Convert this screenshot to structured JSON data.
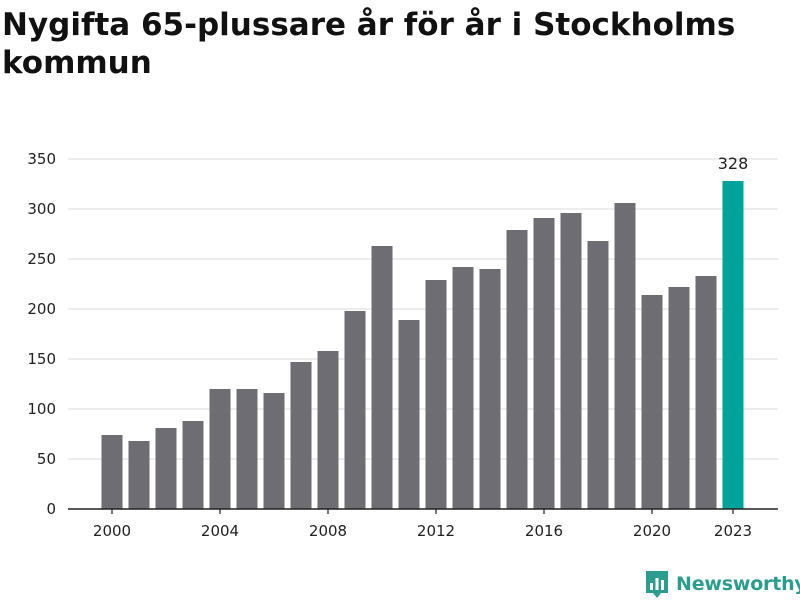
{
  "chart_data": {
    "type": "bar",
    "title": "Nygifta 65-plussare år för år i Stockholms kommun",
    "xlabel": "",
    "ylabel": "",
    "categories": [
      "2000",
      "2001",
      "2002",
      "2003",
      "2004",
      "2005",
      "2006",
      "2007",
      "2008",
      "2009",
      "2010",
      "2011",
      "2012",
      "2013",
      "2014",
      "2015",
      "2016",
      "2017",
      "2018",
      "2019",
      "2020",
      "2021",
      "2022",
      "2023"
    ],
    "values": [
      74,
      68,
      81,
      88,
      120,
      120,
      116,
      147,
      158,
      198,
      263,
      189,
      229,
      242,
      240,
      279,
      291,
      296,
      268,
      306,
      214,
      222,
      233,
      328
    ],
    "x_tick_labels": [
      "2000",
      "2004",
      "2008",
      "2012",
      "2016",
      "2020",
      "2023"
    ],
    "y_ticks": [
      0,
      50,
      100,
      150,
      200,
      250,
      300,
      350
    ],
    "ylim": [
      0,
      350
    ],
    "grid": true,
    "highlight": {
      "category": "2023",
      "label": "328"
    },
    "colors": {
      "bar": "#6e6d73",
      "highlight": "#00a39a",
      "grid": "#e2e2e2",
      "axis": "#222222"
    }
  },
  "branding": {
    "name": "Newsworthy",
    "color": "#2a9d8f",
    "icon": "chart-bubble-icon"
  }
}
